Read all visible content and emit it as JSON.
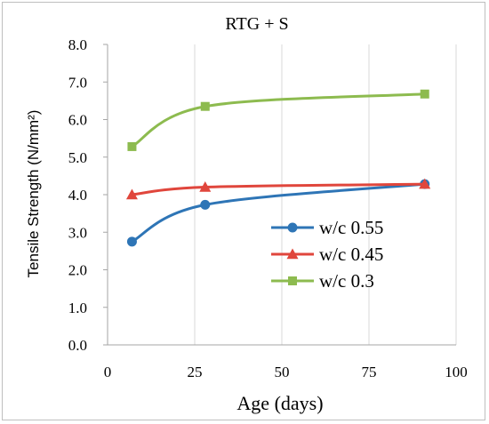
{
  "chart_data": {
    "type": "line",
    "title": "RTG + S",
    "xlabel": "Age (days)",
    "ylabel": "Tensile Strength (N/mm²)",
    "xlim": [
      0,
      100
    ],
    "ylim": [
      0,
      8
    ],
    "xticks": [
      0,
      25,
      50,
      75,
      100
    ],
    "xtick_labels": [
      "0",
      "25",
      "50",
      "75",
      "100"
    ],
    "yticks": [
      0,
      1,
      2,
      3,
      4,
      5,
      6,
      7,
      8
    ],
    "ytick_labels": [
      "0.0",
      "1.0",
      "2.0",
      "3.0",
      "4.0",
      "5.0",
      "6.0",
      "7.0",
      "8.0"
    ],
    "grid": "vertical",
    "legend_position": "right",
    "series": [
      {
        "name": "w/c 0.55",
        "color": "#2e75b6",
        "marker": "circle",
        "x": [
          7,
          28,
          91
        ],
        "y": [
          2.75,
          3.73,
          4.28
        ]
      },
      {
        "name": "w/c 0.45",
        "color": "#e0463c",
        "marker": "triangle",
        "x": [
          7,
          28,
          91
        ],
        "y": [
          4.0,
          4.2,
          4.28
        ]
      },
      {
        "name": "w/c 0.3",
        "color": "#8dbb4f",
        "marker": "square",
        "x": [
          7,
          28,
          91
        ],
        "y": [
          5.28,
          6.35,
          6.68
        ]
      }
    ]
  }
}
